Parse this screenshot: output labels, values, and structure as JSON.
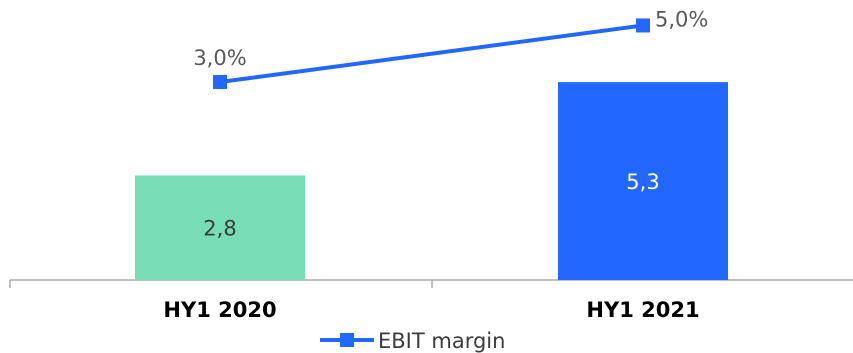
{
  "chart_data": {
    "type": "bar",
    "categories": [
      "HY1 2020",
      "HY1 2021"
    ],
    "bars": {
      "values": [
        2.8,
        5.3
      ],
      "labels": [
        "2,8",
        "5,3"
      ],
      "colors": [
        "#76DDB6",
        "#2267FF"
      ],
      "label_colors": [
        "#3c3c3c",
        "#ffffff"
      ],
      "ylim": [
        0,
        7.5
      ]
    },
    "line": {
      "name": "EBIT margin",
      "values": [
        3.0,
        5.0
      ],
      "labels": [
        "3,0%",
        "5,0%"
      ],
      "color": "#2267FF",
      "ylim": [
        -4.0,
        5.9
      ]
    },
    "legend": {
      "position": "bottom",
      "label": "EBIT margin"
    },
    "grid": false
  }
}
